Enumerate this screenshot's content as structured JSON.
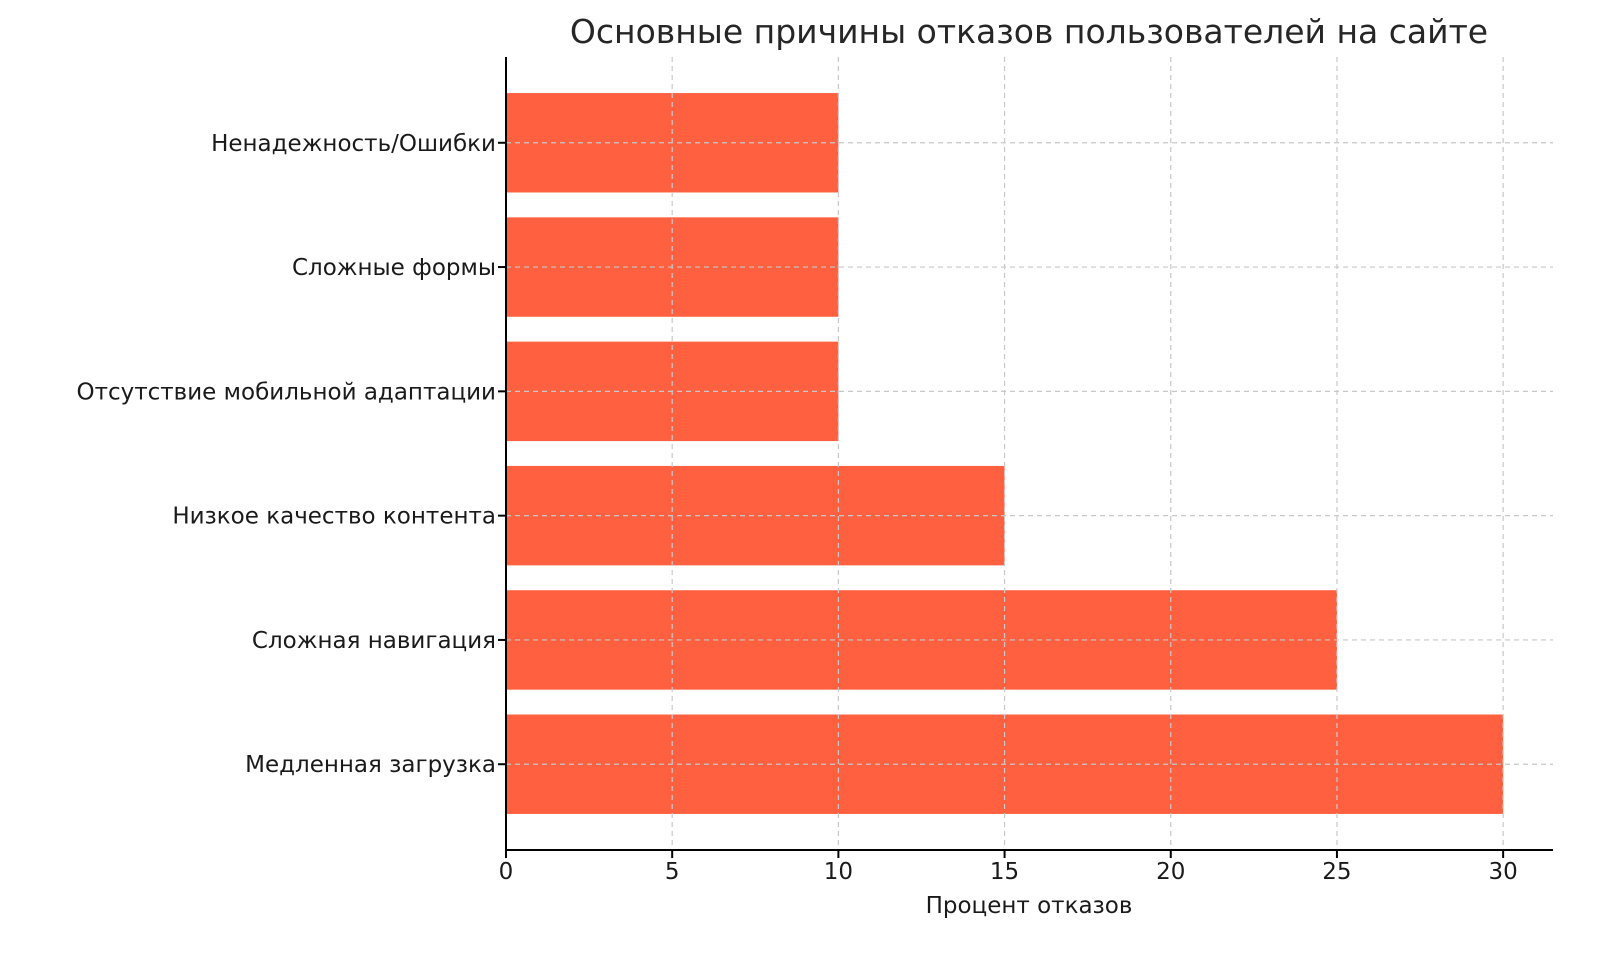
{
  "chart_data": {
    "type": "bar",
    "orientation": "horizontal",
    "title": "Основные причины отказов пользователей на сайте",
    "xlabel": "Процент отказов",
    "ylabel": "",
    "categories": [
      "Медленная загрузка",
      "Сложная навигация",
      "Низкое качество контента",
      "Отсутствие мобильной адаптации",
      "Сложные формы",
      "Ненадежность/Ошибки"
    ],
    "values": [
      30,
      25,
      15,
      10,
      10,
      10
    ],
    "xlim": [
      0,
      31.5
    ],
    "xticks": [
      0,
      5,
      10,
      15,
      20,
      25,
      30
    ],
    "grid": true,
    "grid_style": "dashed",
    "bar_color": "#FF6140",
    "grid_color": "#c8c8c8",
    "axis_color": "#000000"
  }
}
